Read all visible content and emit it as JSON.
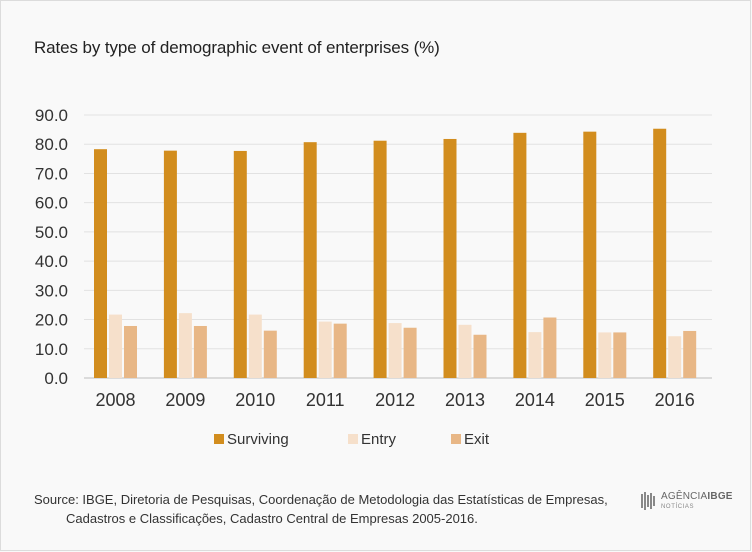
{
  "title": "Rates by type of demographic event of enterprises (%)",
  "chart_data": {
    "type": "bar",
    "title": "Rates by type of demographic event of enterprises (%)",
    "categories": [
      "2008",
      "2009",
      "2010",
      "2011",
      "2012",
      "2013",
      "2014",
      "2015",
      "2016"
    ],
    "series": [
      {
        "name": "Surviving",
        "color": "#d28d1e",
        "values": [
          78.3,
          77.8,
          77.7,
          80.7,
          81.2,
          81.8,
          83.9,
          84.3,
          85.3
        ]
      },
      {
        "name": "Entry",
        "color": "#f6e0cb",
        "values": [
          21.7,
          22.2,
          21.7,
          19.3,
          18.8,
          18.2,
          15.7,
          15.6,
          14.3
        ]
      },
      {
        "name": "Exit",
        "color": "#e8b786",
        "values": [
          17.8,
          17.8,
          16.2,
          18.6,
          17.2,
          14.8,
          20.7,
          15.6,
          16.1
        ]
      }
    ],
    "y_ticks": [
      "0.0",
      "10.0",
      "20.0",
      "30.0",
      "40.0",
      "50.0",
      "60.0",
      "70.0",
      "80.0",
      "90.0"
    ],
    "ylim": [
      0,
      90
    ],
    "grid": true,
    "legend_position": "bottom"
  },
  "source": {
    "line1": "Source: IBGE, Diretoria de Pesquisas, Coordenação de Metodologia das Estatísticas de Empresas,",
    "line2": "Cadastros e Classificações, Cadastro Central de Empresas 2005-2016."
  },
  "logo": {
    "main_light": "AGÊNCIA",
    "main_bold": "IBGE",
    "sub": "NOTÍCIAS"
  }
}
